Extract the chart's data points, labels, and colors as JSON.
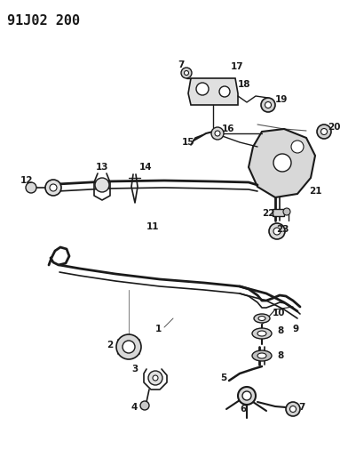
{
  "title": "91J02 200",
  "bg_color": "#ffffff",
  "line_color": "#1a1a1a",
  "label_color": "#1a1a1a",
  "label_fontsize": 7.5,
  "figsize": [
    4.01,
    5.33
  ],
  "dpi": 100
}
